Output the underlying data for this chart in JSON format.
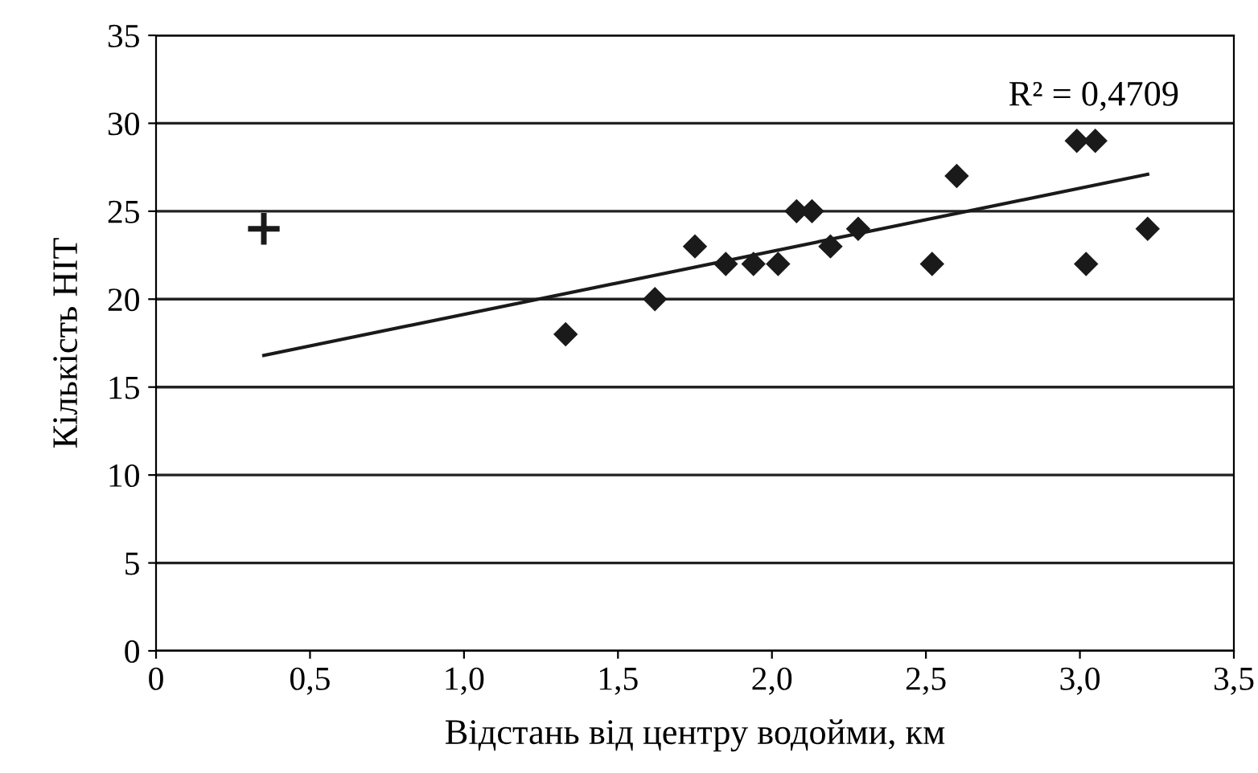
{
  "chart_data": {
    "type": "scatter",
    "xlabel": "Відстань від центру водойми, км",
    "ylabel": "Кількість НІТ",
    "xlim": [
      0,
      3.5
    ],
    "ylim": [
      0,
      35
    ],
    "xticks": [
      0,
      {
        "value": 0.5,
        "label": "0,5"
      },
      {
        "value": 1.0,
        "label": "1,0"
      },
      {
        "value": 1.5,
        "label": "1,5"
      },
      {
        "value": 2.0,
        "label": "2,0"
      },
      {
        "value": 2.5,
        "label": "2,5"
      },
      {
        "value": 3.0,
        "label": "3,0"
      },
      {
        "value": 3.5,
        "label": "3,5"
      }
    ],
    "yticks": [
      0,
      5,
      10,
      15,
      20,
      25,
      30,
      35
    ],
    "grid": "y",
    "series": [
      {
        "marker": "diamond",
        "color": "#1a1a1a",
        "x": [
          1.33,
          1.62,
          1.75,
          1.85,
          1.94,
          2.02,
          2.08,
          2.13,
          2.19,
          2.28,
          2.52,
          2.6,
          2.99,
          3.05,
          3.02,
          3.22
        ],
        "values": [
          18,
          20,
          23,
          22,
          22,
          22,
          25,
          25,
          23,
          24,
          22,
          27,
          29,
          29,
          22,
          24
        ]
      },
      {
        "marker": "cross",
        "color": "#1a1a1a",
        "x": [
          0.35
        ],
        "values": [
          24
        ]
      },
      {
        "type": "line",
        "marker": "none",
        "line_style": "solid",
        "color": "#1a1a1a",
        "x": [
          0.35,
          3.22
        ],
        "values": [
          16.8,
          27.1
        ]
      }
    ],
    "annotations": [
      "R² = 0,4709"
    ]
  }
}
